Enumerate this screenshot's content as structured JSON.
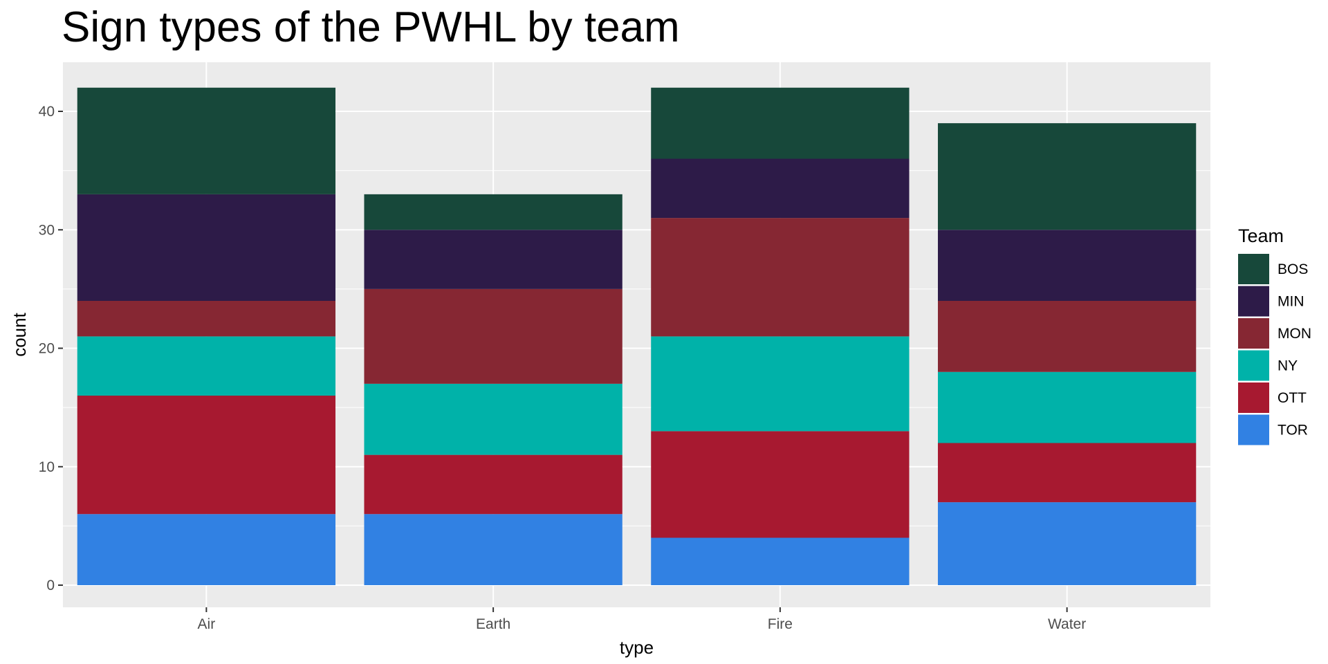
{
  "chart_data": {
    "type": "bar",
    "stacked": true,
    "title": "Sign types of the PWHL by team",
    "xlabel": "type",
    "ylabel": "count",
    "categories": [
      "Air",
      "Earth",
      "Fire",
      "Water"
    ],
    "ylim": [
      0,
      42
    ],
    "yticks": [
      0,
      10,
      20,
      30,
      40
    ],
    "grid": true,
    "legend_position": "right",
    "legend_title": "Team",
    "series": [
      {
        "name": "BOS",
        "color": "#17483A",
        "values": [
          9,
          3,
          6,
          9
        ]
      },
      {
        "name": "MIN",
        "color": "#2D1B48",
        "values": [
          9,
          5,
          5,
          6
        ]
      },
      {
        "name": "MON",
        "color": "#862733",
        "values": [
          3,
          8,
          10,
          6
        ]
      },
      {
        "name": "NY",
        "color": "#00B2A9",
        "values": [
          5,
          6,
          8,
          6
        ]
      },
      {
        "name": "OTT",
        "color": "#A71930",
        "values": [
          10,
          5,
          9,
          5
        ]
      },
      {
        "name": "TOR",
        "color": "#3181E3",
        "values": [
          6,
          6,
          4,
          7
        ]
      }
    ]
  }
}
